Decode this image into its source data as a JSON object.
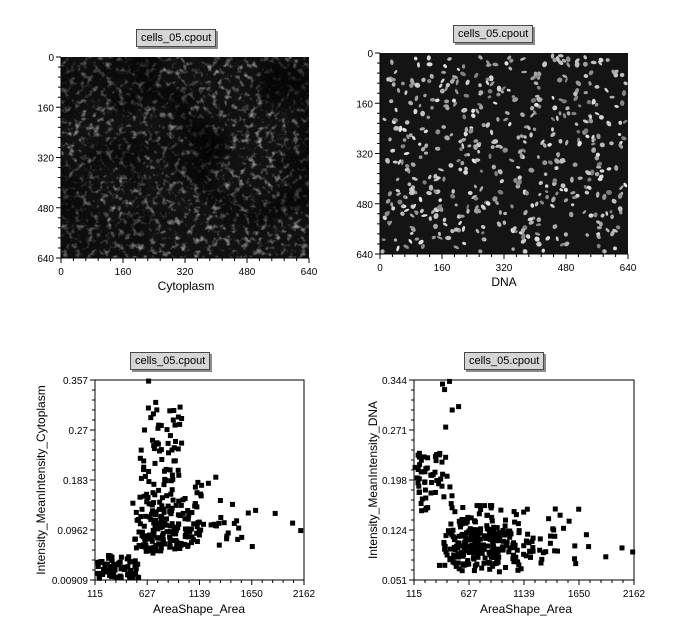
{
  "chart_data": [
    {
      "type": "image",
      "title": "cells_05.cpout",
      "xlabel": "Cytoplasm",
      "ylabel": "",
      "xlim": [
        0,
        640
      ],
      "ylim": [
        0,
        640
      ],
      "xticks": [
        "0",
        "160",
        "320",
        "480",
        "640"
      ],
      "yticks": [
        "0",
        "160",
        "320",
        "480",
        "640"
      ],
      "image_content": "grayscale micrograph of stained cells, cytoplasm channel"
    },
    {
      "type": "image",
      "title": "cells_05.cpout",
      "xlabel": "DNA",
      "ylabel": "",
      "xlim": [
        0,
        640
      ],
      "ylim": [
        0,
        640
      ],
      "xticks": [
        "0",
        "160",
        "320",
        "480",
        "640"
      ],
      "yticks": [
        "0",
        "160",
        "320",
        "480",
        "640"
      ],
      "image_content": "grayscale micrograph of nuclei, DNA channel"
    },
    {
      "type": "scatter",
      "title": "cells_05.cpout",
      "xlabel": "AreaShape_Area",
      "ylabel": "Intensity_MeanIntensity_Cytoplasm",
      "xlim": [
        115,
        2162
      ],
      "ylim": [
        0.00909,
        0.357
      ],
      "xticks": [
        "115",
        "627",
        "1139",
        "1650",
        "2162"
      ],
      "yticks": [
        "0.00909",
        "0.0962",
        "0.183",
        "0.27",
        "0.357"
      ],
      "marker_color": "#000000"
    },
    {
      "type": "scatter",
      "title": "cells_05.cpout",
      "xlabel": "AreaShape_Area",
      "ylabel": "Intensity_MeanIntensity_DNA",
      "xlim": [
        115,
        2162
      ],
      "ylim": [
        0.051,
        0.344
      ],
      "xticks": [
        "115",
        "627",
        "1139",
        "1650",
        "2162"
      ],
      "yticks": [
        "0.051",
        "0.124",
        "0.198",
        "0.271",
        "0.344"
      ],
      "marker_color": "#000000"
    }
  ]
}
